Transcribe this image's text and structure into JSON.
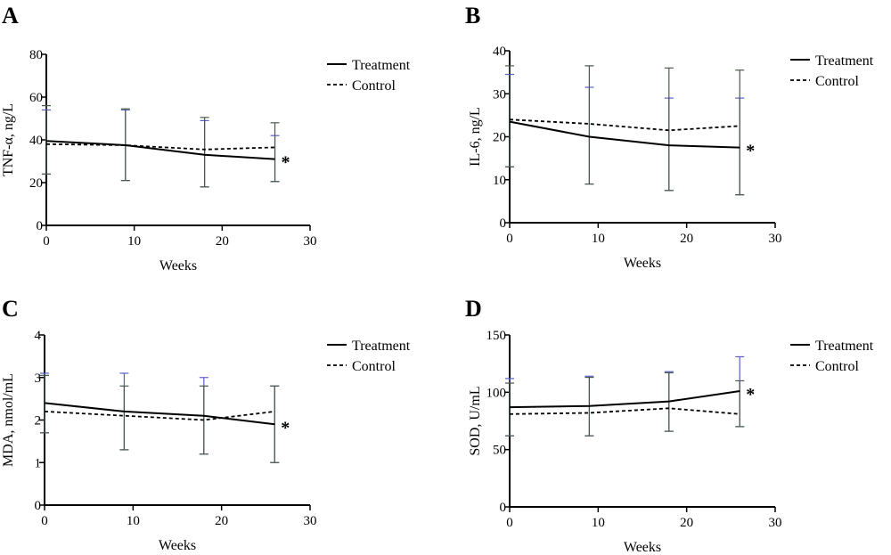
{
  "chart_data": [
    {
      "type": "line",
      "panel": "A",
      "xlabel": "Weeks",
      "ylabel": "TNF-α, ng/L",
      "xlim": [
        0,
        30
      ],
      "xticks": [
        0,
        10,
        20,
        30
      ],
      "ylim": [
        0,
        80
      ],
      "yticks": [
        0,
        20,
        40,
        60,
        80
      ],
      "x": [
        0,
        9,
        18,
        26
      ],
      "series": [
        {
          "name": "Treatment",
          "style": "solid",
          "color": "#000000",
          "values": [
            39.5,
            37.5,
            33,
            31
          ],
          "err_low": [
            24,
            21,
            18,
            20.5
          ],
          "err_high": [
            54,
            54,
            49,
            42
          ],
          "err_color": "#5b5fc7"
        },
        {
          "name": "Control",
          "style": "dashed",
          "color": "#000000",
          "values": [
            38,
            37.5,
            35.5,
            36.5
          ],
          "err_low": [
            24,
            21,
            18,
            20.5
          ],
          "err_high": [
            56,
            54.5,
            50.5,
            48
          ],
          "err_color": "#4a5a4a"
        }
      ],
      "annotation": "*"
    },
    {
      "type": "line",
      "panel": "B",
      "xlabel": "Weeks",
      "ylabel": "IL-6, ng/L",
      "xlim": [
        0,
        30
      ],
      "xticks": [
        0,
        10,
        20,
        30
      ],
      "ylim": [
        0,
        40
      ],
      "yticks": [
        0,
        10,
        20,
        30,
        40
      ],
      "x": [
        0,
        9,
        18,
        26
      ],
      "series": [
        {
          "name": "Treatment",
          "style": "solid",
          "color": "#000000",
          "values": [
            23.5,
            20,
            18,
            17.5
          ],
          "err_low": [
            13,
            9,
            7.5,
            6.5
          ],
          "err_high": [
            34.5,
            31.5,
            29,
            29
          ],
          "err_color": "#5b5fc7"
        },
        {
          "name": "Control",
          "style": "dashed",
          "color": "#000000",
          "values": [
            24,
            23,
            21.5,
            22.5
          ],
          "err_low": [
            13,
            9,
            7.5,
            6.5
          ],
          "err_high": [
            36.5,
            36.5,
            36,
            35.5
          ],
          "err_color": "#4a5a4a"
        }
      ],
      "annotation": "*"
    },
    {
      "type": "line",
      "panel": "C",
      "xlabel": "Weeks",
      "ylabel": "MDA, nmol/mL",
      "xlim": [
        0,
        30
      ],
      "xticks": [
        0,
        10,
        20,
        30
      ],
      "ylim": [
        0,
        4
      ],
      "yticks": [
        0,
        1,
        2,
        3,
        4
      ],
      "x": [
        0,
        9,
        18,
        26
      ],
      "series": [
        {
          "name": "Treatment",
          "style": "solid",
          "color": "#000000",
          "values": [
            2.4,
            2.2,
            2.1,
            1.9
          ],
          "err_low": [
            1.7,
            1.3,
            1.2,
            1.0
          ],
          "err_high": [
            3.1,
            3.1,
            3.0,
            2.8
          ],
          "err_color": "#5b5fc7"
        },
        {
          "name": "Control",
          "style": "dashed",
          "color": "#000000",
          "values": [
            2.2,
            2.1,
            2.0,
            2.2
          ],
          "err_low": [
            1.7,
            1.3,
            1.2,
            1.0
          ],
          "err_high": [
            3.05,
            2.8,
            2.8,
            2.8
          ],
          "err_color": "#4a5a4a"
        }
      ],
      "annotation": "*"
    },
    {
      "type": "line",
      "panel": "D",
      "xlabel": "Weeks",
      "ylabel": "SOD, U/mL",
      "xlim": [
        0,
        30
      ],
      "xticks": [
        0,
        10,
        20,
        30
      ],
      "ylim": [
        0,
        150
      ],
      "yticks": [
        0,
        50,
        100,
        150
      ],
      "x": [
        0,
        9,
        18,
        26
      ],
      "series": [
        {
          "name": "Treatment",
          "style": "solid",
          "color": "#000000",
          "values": [
            87,
            88,
            92,
            101
          ],
          "err_low": [
            62,
            62,
            66,
            70
          ],
          "err_high": [
            112,
            114,
            118,
            131
          ],
          "err_color": "#5b5fc7"
        },
        {
          "name": "Control",
          "style": "dashed",
          "color": "#000000",
          "values": [
            81,
            82,
            86,
            81
          ],
          "err_low": [
            62,
            62,
            66,
            70
          ],
          "err_high": [
            108,
            113,
            117,
            110
          ],
          "err_color": "#4a5a4a"
        }
      ],
      "annotation": "*"
    }
  ]
}
